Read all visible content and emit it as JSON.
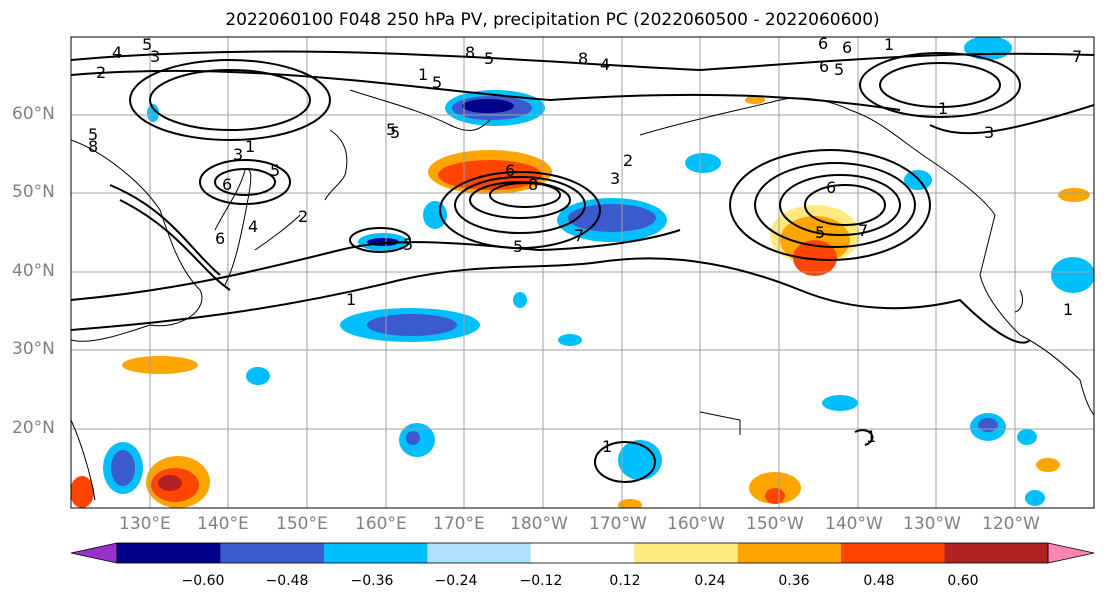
{
  "title": "2022060100 F048 250 hPa PV, precipitation PC (2022060500 - 2022060600)",
  "lat_labels": [
    "60°N",
    "50°N",
    "40°N",
    "30°N",
    "20°N"
  ],
  "lon_labels": [
    "130°E",
    "140°E",
    "150°E",
    "160°E",
    "170°E",
    "180°W",
    "170°W",
    "160°W",
    "150°W",
    "140°W",
    "130°W",
    "120°W"
  ],
  "colorbar": {
    "ticks": [
      "−0.60",
      "−0.48",
      "−0.36",
      "−0.24",
      "−0.12",
      "0.12",
      "0.24",
      "0.36",
      "0.48",
      "0.60"
    ],
    "colors": [
      "#9932cc",
      "#00008b",
      "#3a5acd",
      "#00bfff",
      "#b0e0ff",
      "#ffffff",
      "#ffea80",
      "#ffa500",
      "#ff4500",
      "#b22222",
      "#ff85b0"
    ]
  },
  "contour_labels": [
    "4",
    "5",
    "2",
    "3",
    "5",
    "8",
    "6",
    "5",
    "4",
    "6",
    "2",
    "5",
    "8",
    "6",
    "1",
    "5",
    "5",
    "1",
    "6",
    "8",
    "5",
    "1",
    "3",
    "6",
    "2",
    "7",
    "5",
    "3",
    "6",
    "5",
    "1",
    "4",
    "8",
    "5",
    "7",
    "1",
    "5",
    "1",
    "6",
    "3",
    "7",
    "1",
    "1"
  ]
}
